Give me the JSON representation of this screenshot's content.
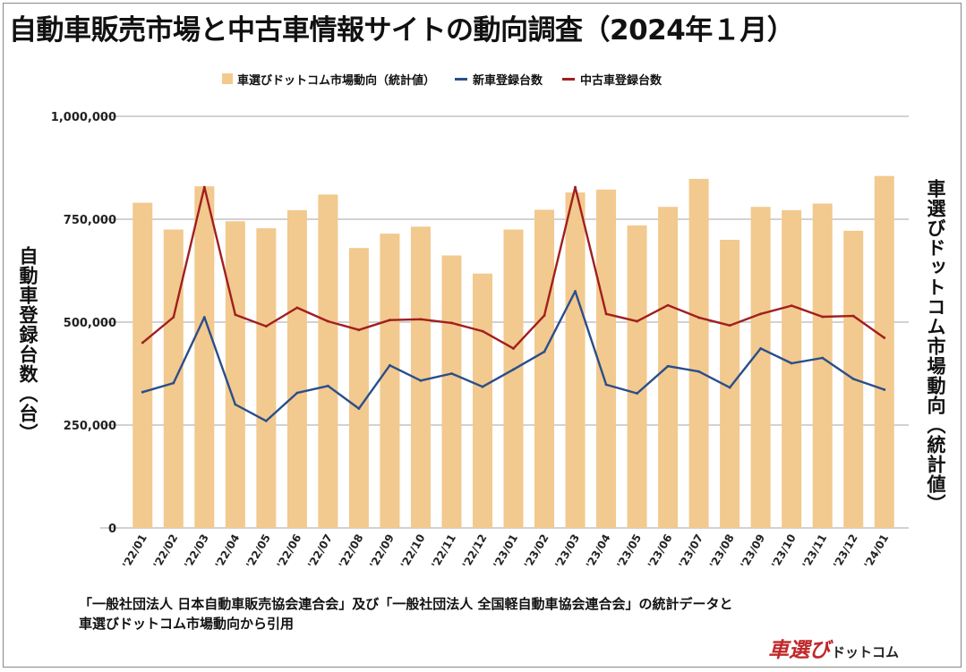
{
  "title": "自動車販売市場と中古車情報サイトの動向調査（2024年１月）",
  "legend": {
    "site": "車選びドットコム市場動向（統計値）",
    "new": "新車登録台数",
    "used": "中古車登録台数"
  },
  "axes": {
    "left_label": "自動車登録台数（台）",
    "right_label": "車選びドットコム市場動向（統計値）"
  },
  "source_line1": "「一般社団法人 日本自動車販売協会連合会」及び「一般社団法人 全国軽自動車協会連合会」の統計データと",
  "source_line2": "車選びドットコム市場動向から引用",
  "brand": {
    "main": "車選び",
    "sub": "ドットコム"
  },
  "colors": {
    "bar": "#f2c98e",
    "new_line": "#2a4e8a",
    "used_line": "#a01f1f",
    "grid": "#b8b8b8",
    "brand": "#c0282a"
  },
  "chart_data": {
    "type": "bar",
    "title": "自動車販売市場と中古車情報サイトの動向調査（2024年１月）",
    "ylabel": "自動車登録台数（台）",
    "ylabel_right": "車選びドットコム市場動向（統計値）",
    "ylim": [
      0,
      1000000
    ],
    "yticks": [
      0,
      250000,
      500000,
      750000,
      1000000
    ],
    "ytick_labels": [
      "0",
      "250,000",
      "500,000",
      "750,000",
      "1,000,000"
    ],
    "grid": true,
    "legend_position": "top",
    "categories": [
      "'22/01",
      "'22/02",
      "'22/03",
      "'22/04",
      "'22/05",
      "'22/06",
      "'22/07",
      "'22/08",
      "'22/09",
      "'22/10",
      "'22/11",
      "'22/12",
      "'23/01",
      "'23/02",
      "'23/03",
      "'23/04",
      "'23/05",
      "'23/06",
      "'23/07",
      "'23/08",
      "'23/09",
      "'23/10",
      "'23/11",
      "'23/12",
      "'24/01"
    ],
    "series": [
      {
        "name": "車選びドットコム市場動向（統計値）",
        "type": "bar",
        "values": [
          790000,
          725000,
          830000,
          745000,
          728000,
          772000,
          810000,
          680000,
          715000,
          732000,
          662000,
          618000,
          725000,
          773000,
          815000,
          822000,
          735000,
          780000,
          848000,
          700000,
          780000,
          772000,
          788000,
          722000,
          855000
        ]
      },
      {
        "name": "新車登録台数",
        "type": "line",
        "values": [
          330000,
          352000,
          512000,
          300000,
          260000,
          328000,
          345000,
          290000,
          395000,
          358000,
          375000,
          343000,
          385000,
          428000,
          575000,
          348000,
          327000,
          393000,
          380000,
          341000,
          436000,
          400000,
          413000,
          362000,
          336000
        ]
      },
      {
        "name": "中古車登録台数",
        "type": "line",
        "values": [
          450000,
          512000,
          828000,
          518000,
          490000,
          535000,
          502000,
          481000,
          505000,
          507000,
          498000,
          478000,
          436000,
          516000,
          828000,
          520000,
          502000,
          541000,
          511000,
          492000,
          520000,
          540000,
          513000,
          515000,
          462000
        ]
      }
    ]
  }
}
